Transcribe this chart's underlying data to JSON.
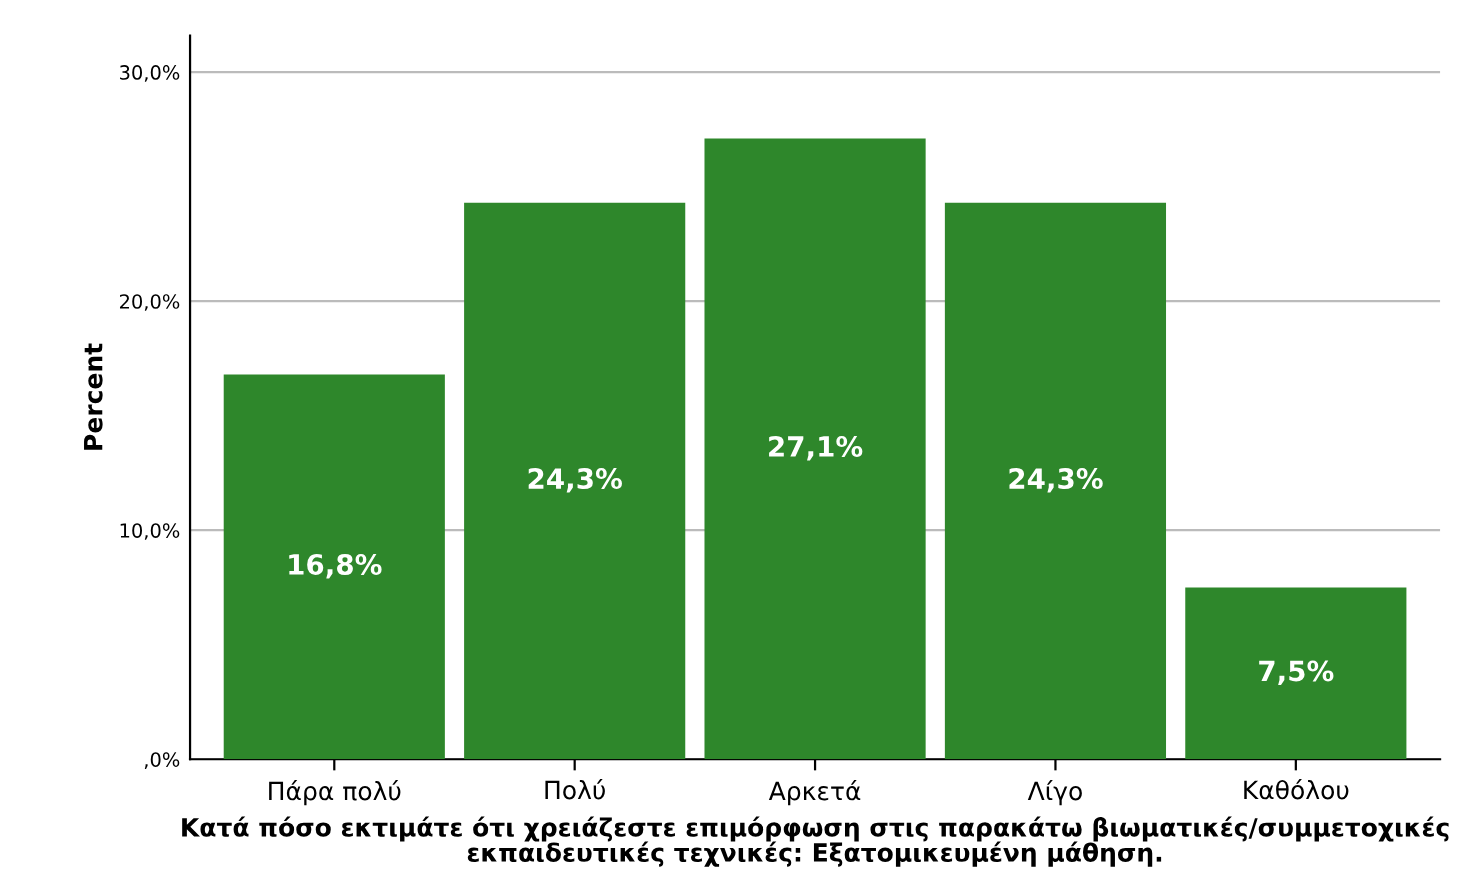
{
  "chart_data": {
    "type": "bar",
    "categories": [
      "Πάρα πολύ",
      "Πολύ",
      "Αρκετά",
      "Λίγο",
      "Καθόλου"
    ],
    "values": [
      16.8,
      24.3,
      27.1,
      24.3,
      7.5
    ],
    "value_labels": [
      "16,8%",
      "24,3%",
      "27,1%",
      "24,3%",
      "7,5%"
    ],
    "color": "#2e872b",
    "ylabel": "Percent",
    "xlabel": "Κατά πόσο εκτιμάτε ότι χρειάζεστε επιμόρφωση στις παρακάτω βιωματικές/συμμετοχικές\nεκπαιδευτικές τεχνικές: Εξατομικευμένη μάθηση.",
    "ylim": [
      0,
      31.6
    ],
    "yticks": [
      {
        "value": 0,
        "label": ",0%"
      },
      {
        "value": 10,
        "label": "10,0%"
      },
      {
        "value": 20,
        "label": "20,0%"
      },
      {
        "value": 30,
        "label": "30,0%"
      }
    ],
    "grid": "y",
    "legend": false
  }
}
